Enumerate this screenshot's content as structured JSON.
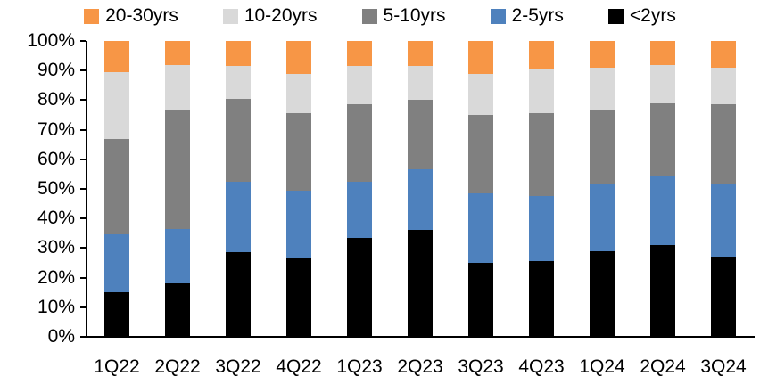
{
  "chart_data": {
    "type": "bar",
    "stacked": true,
    "title": "",
    "xlabel": "",
    "ylabel": "",
    "grid": false,
    "categories": [
      "1Q22",
      "2Q22",
      "3Q22",
      "4Q22",
      "1Q23",
      "2Q23",
      "3Q23",
      "4Q23",
      "1Q24",
      "2Q24",
      "3Q24"
    ],
    "series": [
      {
        "name": "<2yrs",
        "color": "#000000",
        "values": [
          15.0,
          18.0,
          28.5,
          26.5,
          33.5,
          36.0,
          25.0,
          25.5,
          29.0,
          31.0,
          27.0
        ]
      },
      {
        "name": "2-5yrs",
        "color": "#4E81BD",
        "values": [
          19.5,
          18.5,
          24.0,
          23.0,
          19.0,
          20.5,
          23.5,
          22.0,
          22.5,
          23.5,
          24.5
        ]
      },
      {
        "name": "5-10yrs",
        "color": "#808080",
        "values": [
          32.5,
          40.0,
          28.0,
          26.0,
          26.0,
          23.5,
          26.5,
          28.0,
          25.0,
          24.5,
          27.0
        ]
      },
      {
        "name": "10-20yrs",
        "color": "#D9D9D9",
        "values": [
          22.5,
          15.5,
          11.0,
          13.5,
          13.0,
          11.5,
          14.0,
          15.0,
          14.5,
          13.0,
          12.5
        ]
      },
      {
        "name": "20-30yrs",
        "color": "#F79646",
        "values": [
          10.5,
          8.0,
          8.5,
          11.0,
          8.5,
          8.5,
          11.0,
          9.5,
          9.0,
          8.0,
          9.0
        ]
      }
    ],
    "units": "percent",
    "y_axis": {
      "min": 0,
      "max": 100,
      "tick_step": 10,
      "tick_labels": [
        "0%",
        "10%",
        "20%",
        "30%",
        "40%",
        "50%",
        "60%",
        "70%",
        "80%",
        "90%",
        "100%"
      ]
    },
    "legend": {
      "position": "top",
      "order": [
        "20-30yrs",
        "10-20yrs",
        "5-10yrs",
        "2-5yrs",
        "<2yrs"
      ]
    },
    "axis_color": "#000000"
  }
}
